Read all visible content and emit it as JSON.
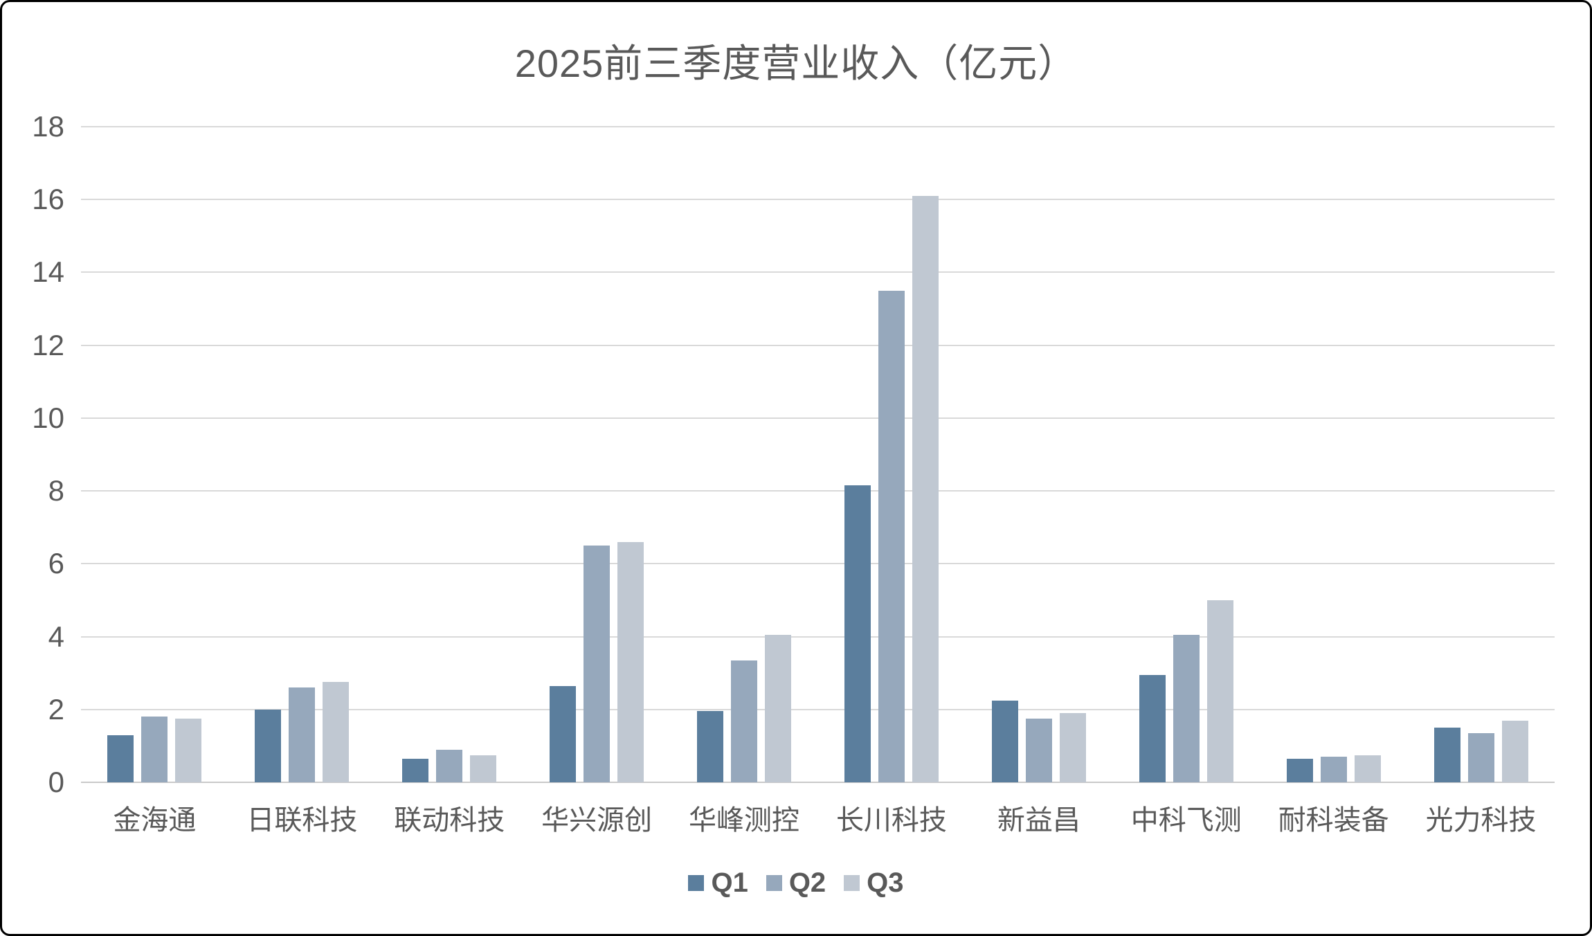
{
  "chart": {
    "text_color": "#595959",
    "gridline_color": "#d9d9d9",
    "background_color": "#ffffff",
    "frame_border_color": "#000000"
  },
  "chart_data": {
    "type": "bar",
    "title": "2025前三季度营业收入（亿元）",
    "xlabel": "",
    "ylabel": "",
    "categories": [
      "金海通",
      "日联科技",
      "联动科技",
      "华兴源创",
      "华峰测控",
      "长川科技",
      "新益昌",
      "中科飞测",
      "耐科装备",
      "光力科技"
    ],
    "series": [
      {
        "name": "Q1",
        "color": "#5b7e9d",
        "values": [
          1.3,
          2.0,
          0.65,
          2.65,
          1.95,
          8.15,
          2.25,
          2.95,
          0.65,
          1.5
        ]
      },
      {
        "name": "Q2",
        "color": "#96a8bc",
        "values": [
          1.8,
          2.6,
          0.9,
          6.5,
          3.35,
          13.5,
          1.75,
          4.05,
          0.7,
          1.35
        ]
      },
      {
        "name": "Q3",
        "color": "#c0c8d2",
        "values": [
          1.75,
          2.75,
          0.75,
          6.6,
          4.05,
          16.1,
          1.9,
          5.0,
          0.75,
          1.7
        ]
      }
    ],
    "ylim": [
      0,
      18
    ],
    "yticks": [
      0,
      2,
      4,
      6,
      8,
      10,
      12,
      14,
      16,
      18
    ],
    "grid": true,
    "legend_position": "bottom"
  }
}
